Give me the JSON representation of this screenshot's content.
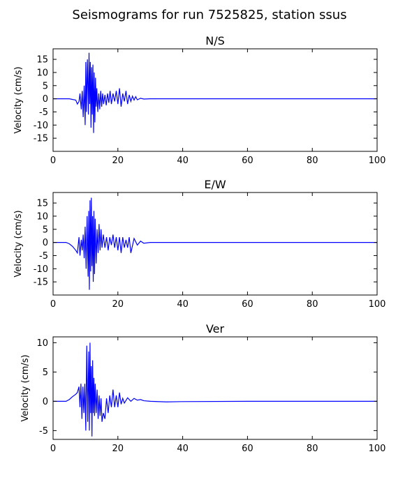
{
  "suptitle": "Seismograms for run 7525825, station ssus",
  "chart_data": [
    {
      "type": "line",
      "title": "N/S",
      "ylabel": "Velocity (cm/s)",
      "xlabel": "",
      "xlim": [
        0,
        100
      ],
      "ylim": [
        -20,
        19
      ],
      "xticks": [
        0,
        20,
        40,
        60,
        80,
        100
      ],
      "yticks": [
        -15,
        -10,
        -5,
        0,
        5,
        10,
        15
      ],
      "grid": false,
      "color": "#0000ff",
      "x": [
        0,
        5,
        7,
        7.5,
        8,
        8.3,
        8.7,
        9,
        9.3,
        9.6,
        9.9,
        10.1,
        10.3,
        10.6,
        10.9,
        11.1,
        11.3,
        11.5,
        11.7,
        11.9,
        12.1,
        12.3,
        12.5,
        12.7,
        12.9,
        13.1,
        13.3,
        13.5,
        13.8,
        14.1,
        14.4,
        14.7,
        15.0,
        15.3,
        15.6,
        16.0,
        16.4,
        16.8,
        17.2,
        17.6,
        18.0,
        18.5,
        19.0,
        19.5,
        20.0,
        20.5,
        21.0,
        21.5,
        22.0,
        22.5,
        23.0,
        23.5,
        24.0,
        24.5,
        25.0,
        25.5,
        26.0,
        27.0,
        28.0,
        30.0,
        40,
        60,
        80,
        100
      ],
      "y": [
        0,
        0,
        -0.5,
        -2,
        -1,
        2,
        -4,
        3,
        -7,
        5,
        -10,
        14,
        -5,
        15,
        -6,
        17.5,
        -2,
        14,
        -11,
        12,
        -6,
        13,
        -13,
        10,
        -9,
        8,
        -3,
        4,
        -5,
        2,
        -4,
        3,
        -3,
        2,
        -2,
        1.5,
        -2.5,
        2,
        -1.5,
        3,
        -2,
        2,
        -1,
        3,
        -2,
        4,
        -3,
        2,
        -1,
        3,
        -2,
        1.5,
        -1,
        1,
        -0.5,
        0.8,
        -0.4,
        0.2,
        -0.1,
        0,
        0,
        0,
        0,
        0
      ]
    },
    {
      "type": "line",
      "title": "E/W",
      "ylabel": "Velocity (cm/s)",
      "xlabel": "",
      "xlim": [
        0,
        100
      ],
      "ylim": [
        -20,
        19
      ],
      "xticks": [
        0,
        20,
        40,
        60,
        80,
        100
      ],
      "yticks": [
        -15,
        -10,
        -5,
        0,
        5,
        10,
        15
      ],
      "grid": false,
      "color": "#0000ff",
      "x": [
        0,
        4,
        5,
        6,
        7,
        7.5,
        8,
        8.3,
        8.7,
        9.0,
        9.3,
        9.6,
        9.9,
        10.2,
        10.5,
        10.8,
        11.0,
        11.2,
        11.4,
        11.6,
        11.8,
        12.0,
        12.2,
        12.4,
        12.6,
        12.8,
        13.0,
        13.3,
        13.6,
        13.9,
        14.2,
        14.5,
        14.8,
        15.1,
        15.5,
        16.0,
        16.5,
        17.0,
        17.5,
        18.0,
        18.5,
        19.0,
        19.5,
        20.0,
        20.5,
        21.0,
        21.5,
        22.0,
        22.5,
        23.0,
        23.5,
        24.0,
        25.0,
        26.0,
        27.0,
        28.0,
        30.0,
        40,
        60,
        80,
        100
      ],
      "y": [
        0,
        0,
        -0.5,
        -1.5,
        -3,
        -4,
        2,
        -5,
        1,
        -3,
        3,
        -6,
        6,
        -10,
        10,
        -13,
        12,
        -18,
        16,
        -11,
        17,
        -9,
        10,
        -15,
        12,
        -12,
        9,
        -8,
        5,
        -4,
        7,
        -3,
        5,
        -2,
        3,
        -2,
        2,
        -3,
        2,
        -1,
        3,
        -2,
        2,
        -3,
        2,
        -4,
        2,
        -2,
        1,
        -2,
        2,
        -4,
        1.5,
        -1,
        0.5,
        -0.3,
        0,
        0,
        0,
        0,
        0
      ]
    },
    {
      "type": "line",
      "title": "Ver",
      "ylabel": "Velocity (cm/s)",
      "xlabel": "",
      "xlim": [
        0,
        100
      ],
      "ylim": [
        -6.5,
        11
      ],
      "xticks": [
        0,
        20,
        40,
        60,
        80,
        100
      ],
      "yticks": [
        -5,
        0,
        5,
        10
      ],
      "grid": false,
      "color": "#0000ff",
      "x": [
        0,
        4,
        5,
        6,
        7,
        7.5,
        8,
        8.3,
        8.6,
        8.9,
        9.2,
        9.5,
        9.8,
        10.1,
        10.4,
        10.7,
        11.0,
        11.2,
        11.4,
        11.6,
        11.8,
        12.0,
        12.2,
        12.4,
        12.6,
        12.8,
        13.0,
        13.3,
        13.6,
        13.9,
        14.2,
        14.5,
        14.8,
        15.1,
        15.5,
        16.0,
        16.5,
        17.0,
        17.5,
        18.0,
        18.5,
        19.0,
        19.5,
        20.0,
        20.5,
        21.0,
        21.5,
        22.0,
        23.0,
        24.0,
        25.0,
        26.0,
        27.0,
        28.0,
        30.0,
        35,
        40,
        60,
        80,
        100
      ],
      "y": [
        0,
        0,
        0.3,
        0.8,
        1.2,
        1.5,
        2.5,
        -1,
        3,
        -3,
        2.5,
        -2,
        3,
        -5,
        9.5,
        -3.5,
        8.5,
        -5,
        10,
        -2,
        6,
        -6,
        7,
        -2,
        4,
        -2.5,
        3,
        -2,
        2,
        -3,
        1,
        -2.5,
        0.5,
        -3.5,
        -2,
        -3,
        0.5,
        -2,
        1,
        -1,
        2,
        -1,
        1,
        -1,
        1.5,
        -0.5,
        0.5,
        -0.3,
        0.6,
        0,
        0.5,
        0.2,
        0.3,
        0.1,
        0,
        -0.1,
        -0.05,
        0,
        0,
        0
      ]
    }
  ]
}
